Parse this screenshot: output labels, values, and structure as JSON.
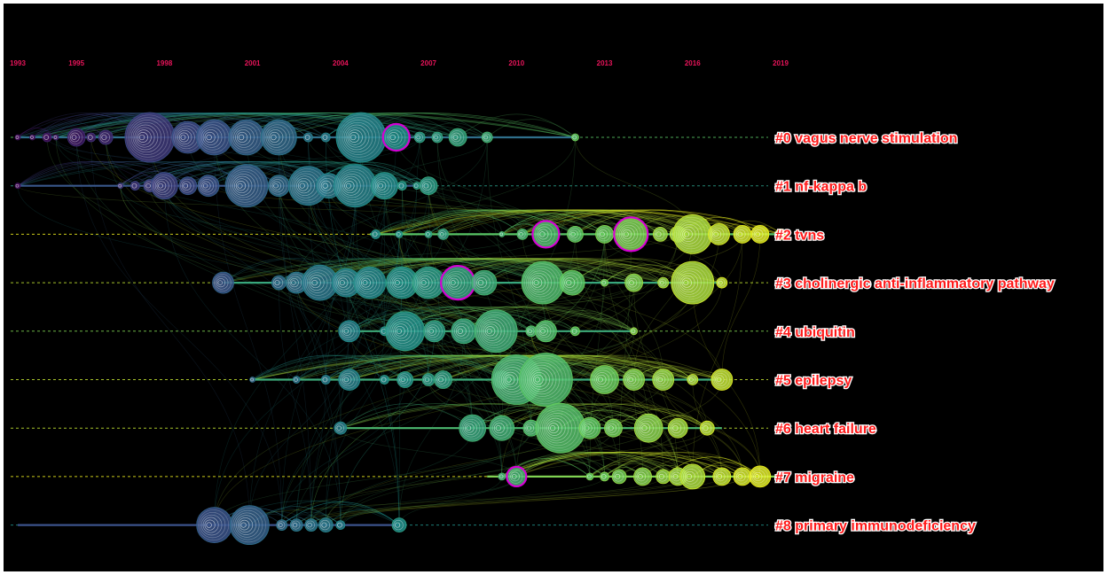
{
  "chart_data": {
    "type": "timeline",
    "x_range": [
      1993,
      2019
    ],
    "years_shown": [
      "1993",
      "1995",
      "1998",
      "2001",
      "2004",
      "2007",
      "2010",
      "2013",
      "2016",
      "2019"
    ],
    "clusters": [
      {
        "id": 0,
        "label": "#0 vagus nerve stimulation",
        "start": 1993,
        "end": 2012,
        "nodes": [
          {
            "year": 1993.0,
            "size": 3
          },
          {
            "year": 1993.5,
            "size": 3
          },
          {
            "year": 1994.0,
            "size": 5
          },
          {
            "year": 1994.3,
            "size": 3
          },
          {
            "year": 1995.0,
            "size": 10
          },
          {
            "year": 1995.5,
            "size": 5
          },
          {
            "year": 1996.0,
            "size": 8
          },
          {
            "year": 1997.5,
            "size": 28
          },
          {
            "year": 1998.8,
            "size": 18
          },
          {
            "year": 1999.7,
            "size": 20
          },
          {
            "year": 2000.8,
            "size": 20
          },
          {
            "year": 2001.9,
            "size": 20
          },
          {
            "year": 2002.9,
            "size": 5
          },
          {
            "year": 2003.5,
            "size": 5
          },
          {
            "year": 2004.7,
            "size": 28
          },
          {
            "year": 2005.9,
            "size": 14
          },
          {
            "year": 2006.7,
            "size": 6
          },
          {
            "year": 2007.3,
            "size": 6
          },
          {
            "year": 2008.0,
            "size": 10
          },
          {
            "year": 2009.0,
            "size": 6
          },
          {
            "year": 2012.0,
            "size": 4
          }
        ],
        "highlighted_years": [
          2005.9
        ]
      },
      {
        "id": 1,
        "label": "#1 nf-kappa b",
        "start": 1993,
        "end": 2007,
        "nodes": [
          {
            "year": 1993.0,
            "size": 3
          },
          {
            "year": 1996.5,
            "size": 3
          },
          {
            "year": 1997.0,
            "size": 5
          },
          {
            "year": 1997.5,
            "size": 7
          },
          {
            "year": 1998.0,
            "size": 15
          },
          {
            "year": 1998.8,
            "size": 10
          },
          {
            "year": 1999.5,
            "size": 12
          },
          {
            "year": 2000.8,
            "size": 24
          },
          {
            "year": 2001.9,
            "size": 12
          },
          {
            "year": 2002.9,
            "size": 22
          },
          {
            "year": 2003.6,
            "size": 14
          },
          {
            "year": 2004.5,
            "size": 24
          },
          {
            "year": 2005.5,
            "size": 15
          },
          {
            "year": 2006.1,
            "size": 5
          },
          {
            "year": 2006.6,
            "size": 4
          },
          {
            "year": 2007.0,
            "size": 10
          }
        ],
        "highlighted_years": []
      },
      {
        "id": 2,
        "label": "#2 tvns",
        "start": 2005,
        "end": 2019,
        "nodes": [
          {
            "year": 2005.2,
            "size": 5
          },
          {
            "year": 2006.0,
            "size": 4
          },
          {
            "year": 2007.0,
            "size": 4
          },
          {
            "year": 2007.5,
            "size": 6
          },
          {
            "year": 2009.5,
            "size": 3
          },
          {
            "year": 2010.2,
            "size": 6
          },
          {
            "year": 2011.0,
            "size": 14
          },
          {
            "year": 2012.0,
            "size": 9
          },
          {
            "year": 2013.0,
            "size": 10
          },
          {
            "year": 2013.9,
            "size": 18
          },
          {
            "year": 2014.9,
            "size": 8
          },
          {
            "year": 2015.5,
            "size": 9
          },
          {
            "year": 2016.0,
            "size": 22
          },
          {
            "year": 2016.9,
            "size": 12
          },
          {
            "year": 2017.7,
            "size": 10
          },
          {
            "year": 2018.3,
            "size": 10
          },
          {
            "year": 2019.0,
            "size": 6
          }
        ],
        "highlighted_years": [
          2011.0,
          2013.9
        ]
      },
      {
        "id": 3,
        "label": "#3 cholinergic anti-inflammatory pathway",
        "start": 2000,
        "end": 2017,
        "nodes": [
          {
            "year": 2000.0,
            "size": 12
          },
          {
            "year": 2001.9,
            "size": 8
          },
          {
            "year": 2002.5,
            "size": 12
          },
          {
            "year": 2003.3,
            "size": 20
          },
          {
            "year": 2004.2,
            "size": 16
          },
          {
            "year": 2005.0,
            "size": 18
          },
          {
            "year": 2006.1,
            "size": 18
          },
          {
            "year": 2007.0,
            "size": 18
          },
          {
            "year": 2008.0,
            "size": 18
          },
          {
            "year": 2008.9,
            "size": 14
          },
          {
            "year": 2010.9,
            "size": 24
          },
          {
            "year": 2011.9,
            "size": 14
          },
          {
            "year": 2013.0,
            "size": 4
          },
          {
            "year": 2014.0,
            "size": 10
          },
          {
            "year": 2015.0,
            "size": 6
          },
          {
            "year": 2016.0,
            "size": 24
          },
          {
            "year": 2017.0,
            "size": 6
          }
        ],
        "highlighted_years": [
          2008.0
        ]
      },
      {
        "id": 4,
        "label": "#4 ubiquitin",
        "start": 2004,
        "end": 2014,
        "nodes": [
          {
            "year": 2004.3,
            "size": 12
          },
          {
            "year": 2005.5,
            "size": 5
          },
          {
            "year": 2006.2,
            "size": 22
          },
          {
            "year": 2007.2,
            "size": 12
          },
          {
            "year": 2008.2,
            "size": 14
          },
          {
            "year": 2009.3,
            "size": 24
          },
          {
            "year": 2010.5,
            "size": 6
          },
          {
            "year": 2011.0,
            "size": 12
          },
          {
            "year": 2012.0,
            "size": 5
          },
          {
            "year": 2014.0,
            "size": 4
          }
        ],
        "highlighted_years": []
      },
      {
        "id": 5,
        "label": "#5 epilepsy",
        "start": 2001,
        "end": 2017,
        "nodes": [
          {
            "year": 2001.0,
            "size": 3
          },
          {
            "year": 2002.5,
            "size": 4
          },
          {
            "year": 2003.5,
            "size": 5
          },
          {
            "year": 2004.3,
            "size": 12
          },
          {
            "year": 2005.5,
            "size": 5
          },
          {
            "year": 2006.2,
            "size": 9
          },
          {
            "year": 2007.0,
            "size": 7
          },
          {
            "year": 2007.5,
            "size": 10
          },
          {
            "year": 2009.5,
            "size": 10
          },
          {
            "year": 2010.0,
            "size": 28
          },
          {
            "year": 2011.0,
            "size": 30
          },
          {
            "year": 2013.0,
            "size": 16
          },
          {
            "year": 2014.0,
            "size": 12
          },
          {
            "year": 2015.0,
            "size": 12
          },
          {
            "year": 2016.0,
            "size": 6
          },
          {
            "year": 2017.0,
            "size": 12
          }
        ],
        "highlighted_years": []
      },
      {
        "id": 6,
        "label": "#6 heart failure",
        "start": 2004,
        "end": 2017,
        "nodes": [
          {
            "year": 2004.0,
            "size": 7
          },
          {
            "year": 2008.5,
            "size": 15
          },
          {
            "year": 2009.5,
            "size": 14
          },
          {
            "year": 2010.5,
            "size": 9
          },
          {
            "year": 2011.5,
            "size": 28
          },
          {
            "year": 2012.5,
            "size": 12
          },
          {
            "year": 2013.3,
            "size": 10
          },
          {
            "year": 2014.5,
            "size": 16
          },
          {
            "year": 2015.5,
            "size": 11
          },
          {
            "year": 2016.5,
            "size": 8
          }
        ],
        "highlighted_years": []
      },
      {
        "id": 7,
        "label": "#7 migraine",
        "start": 2009,
        "end": 2019,
        "nodes": [
          {
            "year": 2009.5,
            "size": 4
          },
          {
            "year": 2010.0,
            "size": 10
          },
          {
            "year": 2012.5,
            "size": 4
          },
          {
            "year": 2013.0,
            "size": 5
          },
          {
            "year": 2013.5,
            "size": 8
          },
          {
            "year": 2014.3,
            "size": 10
          },
          {
            "year": 2015.0,
            "size": 8
          },
          {
            "year": 2015.5,
            "size": 10
          },
          {
            "year": 2016.0,
            "size": 14
          },
          {
            "year": 2017.0,
            "size": 10
          },
          {
            "year": 2017.7,
            "size": 10
          },
          {
            "year": 2018.3,
            "size": 12
          }
        ],
        "highlighted_years": [
          2010.0
        ]
      },
      {
        "id": 8,
        "label": "#8 primary immunodeficiency",
        "start": 1993,
        "end": 2006,
        "nodes": [
          {
            "year": 1999.7,
            "size": 20
          },
          {
            "year": 2000.9,
            "size": 22
          },
          {
            "year": 2002.0,
            "size": 6
          },
          {
            "year": 2002.5,
            "size": 7
          },
          {
            "year": 2003.0,
            "size": 7
          },
          {
            "year": 2003.5,
            "size": 8
          },
          {
            "year": 2004.0,
            "size": 5
          },
          {
            "year": 2006.0,
            "size": 8
          }
        ],
        "highlighted_years": []
      }
    ],
    "legend_placement": "right",
    "grid": false
  },
  "colors": {
    "background": "#000000",
    "year_label": "#e8145a",
    "cluster_label": "#ff1a1a",
    "highlight_ring": "#d400d4",
    "old": "#4b1a7a",
    "mid": "#21918c",
    "new": "#e8f01a"
  }
}
